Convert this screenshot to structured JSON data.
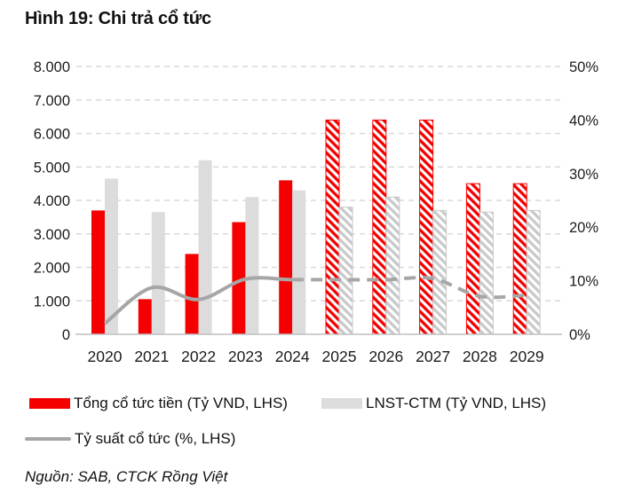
{
  "title": "Hình 19: Chi trả cổ tức",
  "source": "Nguồn: SAB, CTCK Rồng Việt",
  "colors": {
    "cash_dividend_red": "#F40000",
    "npat_gray": "#DCDCDC",
    "yield_line_gray": "#A6A6A6",
    "gridline": "#D9D9D9",
    "axis_line": "#BFBFBF",
    "tick_text": "#1A1A1A"
  },
  "chart_data": {
    "type": "combo-bar-line",
    "categories": [
      "2020",
      "2021",
      "2022",
      "2023",
      "2024",
      "2025",
      "2026",
      "2027",
      "2028",
      "2029"
    ],
    "series": [
      {
        "name": "Tổng cổ tức tiền (Tỷ VND, LHS)",
        "type": "bar",
        "axis": "left",
        "color": "#F40000",
        "values": [
          3700,
          1050,
          2400,
          3350,
          4600,
          6400,
          6400,
          6400,
          4500,
          4500
        ]
      },
      {
        "name": "LNST-CTM (Tỷ VND, LHS)",
        "type": "bar",
        "axis": "left",
        "color": "#DCDCDC",
        "values": [
          4650,
          3650,
          5200,
          4100,
          4300,
          3800,
          4100,
          3700,
          3650,
          3700
        ]
      },
      {
        "name": "Tỷ suất cổ tức (%, LHS)",
        "type": "line",
        "axis": "right",
        "color": "#A6A6A6",
        "values": [
          2.0,
          8.7,
          6.5,
          10.3,
          10.2,
          10.2,
          10.2,
          10.4,
          7.1,
          7.3
        ]
      }
    ],
    "forecast_start_index": 5,
    "forecast_style": "diagonal-hatch-bars-dashed-line",
    "left_axis": {
      "min": 0,
      "max": 8000,
      "step": 1000,
      "tick_labels_top_down": [
        "8.000",
        "7.000",
        "6.000",
        "5.000",
        "4.000",
        "3.000",
        "2.000",
        "1.000",
        "0"
      ]
    },
    "right_axis": {
      "min": 0,
      "max": 50,
      "step": 10,
      "tick_labels_top_down": [
        "50%",
        "40%",
        "30%",
        "20%",
        "10%",
        "0%"
      ]
    },
    "grid": "horizontal-dashed",
    "legend_position": "bottom-left"
  }
}
